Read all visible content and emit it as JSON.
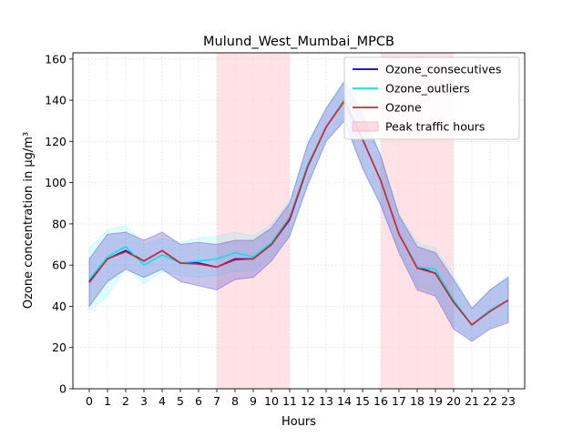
{
  "chart_data": {
    "type": "line",
    "title": "Mulund_West_Mumbai_MPCB",
    "xlabel": "Hours",
    "ylabel": "Ozone concentration in µg/m³",
    "x": [
      0,
      1,
      2,
      3,
      4,
      5,
      6,
      7,
      8,
      9,
      10,
      11,
      12,
      13,
      14,
      15,
      16,
      17,
      18,
      19,
      20,
      21,
      22,
      23
    ],
    "xlim": [
      -0.9,
      23.9
    ],
    "ylim": [
      0,
      163
    ],
    "yticks": [
      0,
      20,
      40,
      60,
      80,
      100,
      120,
      140,
      160
    ],
    "grid": true,
    "legend_position": "top-right",
    "peak_traffic_hours": [
      [
        7,
        11
      ],
      [
        16,
        20
      ]
    ],
    "series": [
      {
        "name": "Ozone_consecutives",
        "color": "#0000cc",
        "values": [
          52,
          63,
          67,
          62,
          67,
          61,
          61,
          59,
          63,
          63,
          70,
          82,
          108,
          127,
          140,
          121,
          101,
          75,
          59,
          56,
          42,
          31,
          38,
          43
        ],
        "band_lower": [
          40,
          52,
          58,
          54,
          58,
          52,
          50,
          48,
          53,
          54,
          62,
          74,
          99,
          120,
          130,
          107,
          89,
          66,
          48,
          45,
          29,
          23,
          29,
          32
        ],
        "band_upper": [
          63,
          75,
          76,
          72,
          76,
          70,
          71,
          70,
          72,
          72,
          78,
          90,
          119,
          136,
          149,
          133,
          113,
          84,
          69,
          66,
          53,
          39,
          48,
          54
        ]
      },
      {
        "name": "Ozone_outliers",
        "color": "#00e5ee",
        "values": [
          53,
          64,
          69,
          60,
          65,
          61,
          62,
          63,
          66,
          64,
          71,
          83,
          109,
          127,
          140,
          121,
          101,
          75,
          59,
          58,
          43,
          31,
          38,
          43
        ],
        "band_lower": [
          38,
          45,
          59,
          51,
          57,
          55,
          54,
          55,
          57,
          57,
          64,
          75,
          100,
          121,
          131,
          108,
          90,
          67,
          50,
          47,
          31,
          24,
          30,
          33
        ],
        "band_upper": [
          68,
          77,
          79,
          70,
          73,
          71,
          73,
          74,
          76,
          74,
          80,
          91,
          119,
          136,
          150,
          134,
          113,
          85,
          71,
          68,
          55,
          39,
          48,
          55
        ]
      },
      {
        "name": "Ozone",
        "color": "#d62728",
        "values": [
          51.5,
          63,
          66.5,
          62,
          67,
          61,
          60.5,
          59,
          62.5,
          63,
          70,
          82.5,
          108,
          127,
          139.5,
          121,
          101,
          75,
          58.5,
          56,
          42,
          31,
          37.5,
          43
        ]
      }
    ],
    "legend": [
      "Ozone_consecutives",
      "Ozone_outliers",
      "Ozone",
      "Peak traffic hours"
    ],
    "band_color": "#6a5acd",
    "peak_color": "#ffb6c1"
  }
}
